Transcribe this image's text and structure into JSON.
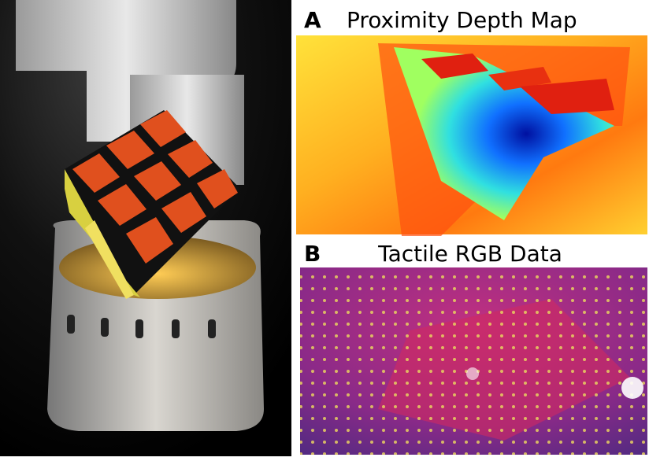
{
  "panels": [
    {
      "label": "A",
      "title": "Proximity Depth Map"
    },
    {
      "label": "B",
      "title": "Tactile RGB Data"
    }
  ]
}
